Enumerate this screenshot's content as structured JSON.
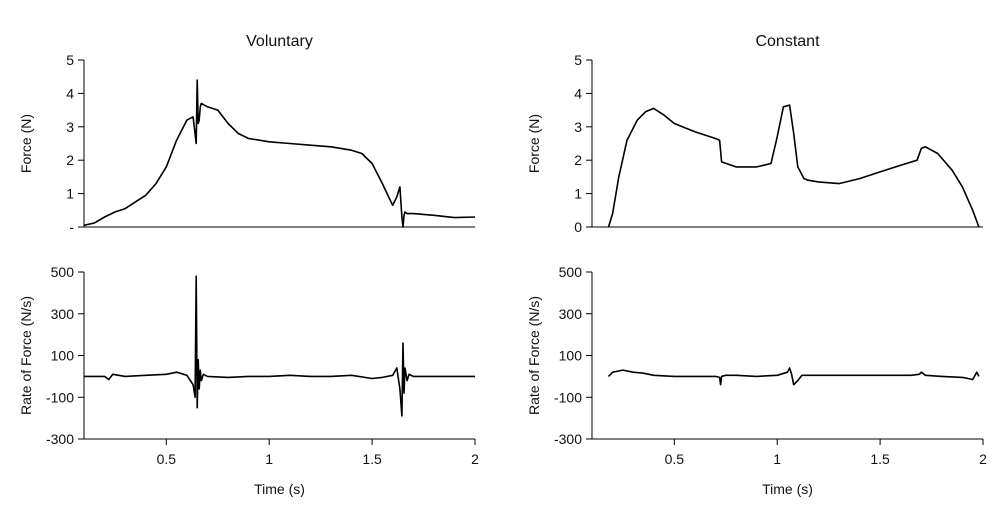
{
  "chart_data": [
    {
      "type": "line",
      "title": "Voluntary",
      "xlabel": "",
      "ylabel": "Force (N)",
      "xlim": [
        0.1,
        2.0
      ],
      "ylim": [
        0,
        5
      ],
      "yticks": [
        {
          "value": 0,
          "label": "-"
        },
        {
          "value": 1,
          "label": "1"
        },
        {
          "value": 2,
          "label": "2"
        },
        {
          "value": 3,
          "label": "3"
        },
        {
          "value": 4,
          "label": "4"
        },
        {
          "value": 5,
          "label": "5"
        }
      ],
      "xticks": [],
      "series": [
        {
          "x": [
            0.1,
            0.15,
            0.2,
            0.25,
            0.3,
            0.35,
            0.4,
            0.45,
            0.5,
            0.55,
            0.6,
            0.63,
            0.645,
            0.65,
            0.655,
            0.66,
            0.665,
            0.67,
            0.7,
            0.75,
            0.8,
            0.85,
            0.9,
            1.0,
            1.1,
            1.2,
            1.3,
            1.4,
            1.45,
            1.5,
            1.55,
            1.58,
            1.6,
            1.62,
            1.635,
            1.645,
            1.65,
            1.655,
            1.66,
            1.67,
            1.7,
            1.8,
            1.9,
            2.0
          ],
          "y": [
            0.05,
            0.12,
            0.3,
            0.45,
            0.55,
            0.75,
            0.95,
            1.3,
            1.8,
            2.6,
            3.2,
            3.3,
            2.5,
            4.4,
            3.1,
            3.2,
            3.6,
            3.7,
            3.6,
            3.5,
            3.1,
            2.8,
            2.65,
            2.55,
            2.5,
            2.45,
            2.4,
            2.3,
            2.2,
            1.9,
            1.3,
            0.9,
            0.65,
            0.9,
            1.2,
            0.3,
            0.0,
            0.35,
            0.45,
            0.4,
            0.4,
            0.35,
            0.28,
            0.3
          ]
        }
      ]
    },
    {
      "type": "line",
      "title": "Constant",
      "xlabel": "",
      "ylabel": "Force (N)",
      "xlim": [
        0.1,
        2.0
      ],
      "ylim": [
        0,
        5
      ],
      "yticks": [
        {
          "value": 0,
          "label": "0"
        },
        {
          "value": 1,
          "label": "1"
        },
        {
          "value": 2,
          "label": "2"
        },
        {
          "value": 3,
          "label": "3"
        },
        {
          "value": 4,
          "label": "4"
        },
        {
          "value": 5,
          "label": "5"
        }
      ],
      "xticks": [],
      "series": [
        {
          "x": [
            0.18,
            0.2,
            0.23,
            0.27,
            0.32,
            0.36,
            0.4,
            0.45,
            0.5,
            0.6,
            0.7,
            0.72,
            0.73,
            0.8,
            0.9,
            0.97,
            1.0,
            1.03,
            1.06,
            1.08,
            1.1,
            1.13,
            1.15,
            1.2,
            1.3,
            1.4,
            1.5,
            1.6,
            1.68,
            1.7,
            1.72,
            1.78,
            1.85,
            1.9,
            1.95,
            1.98
          ],
          "y": [
            0,
            0.4,
            1.5,
            2.6,
            3.2,
            3.45,
            3.55,
            3.35,
            3.1,
            2.85,
            2.65,
            2.6,
            1.95,
            1.8,
            1.8,
            1.9,
            2.7,
            3.6,
            3.65,
            2.8,
            1.8,
            1.45,
            1.4,
            1.35,
            1.3,
            1.45,
            1.65,
            1.85,
            2.0,
            2.35,
            2.4,
            2.2,
            1.7,
            1.2,
            0.5,
            0
          ]
        }
      ]
    },
    {
      "type": "line",
      "title": "",
      "xlabel": "Time (s)",
      "ylabel": "Rate of Force (N/s)",
      "xlim": [
        0.1,
        2.0
      ],
      "ylim": [
        -300,
        500
      ],
      "yticks": [
        {
          "value": -300,
          "label": "-300"
        },
        {
          "value": -100,
          "label": "-100"
        },
        {
          "value": 100,
          "label": "100"
        },
        {
          "value": 300,
          "label": "300"
        },
        {
          "value": 500,
          "label": "500"
        }
      ],
      "xticks": [
        {
          "value": 0.5,
          "label": "0.5"
        },
        {
          "value": 1.0,
          "label": "1"
        },
        {
          "value": 1.5,
          "label": "1.5"
        },
        {
          "value": 2.0,
          "label": "2"
        }
      ],
      "series": [
        {
          "x": [
            0.1,
            0.2,
            0.22,
            0.24,
            0.3,
            0.4,
            0.5,
            0.55,
            0.6,
            0.63,
            0.64,
            0.645,
            0.65,
            0.655,
            0.66,
            0.665,
            0.67,
            0.68,
            0.7,
            0.8,
            0.9,
            1.0,
            1.1,
            1.2,
            1.3,
            1.4,
            1.5,
            1.55,
            1.6,
            1.62,
            1.635,
            1.645,
            1.65,
            1.655,
            1.66,
            1.67,
            1.68,
            1.7,
            1.8,
            1.9,
            2.0
          ],
          "y": [
            0,
            0,
            -15,
            10,
            0,
            5,
            10,
            20,
            5,
            -40,
            -100,
            480,
            -150,
            80,
            -60,
            30,
            -20,
            10,
            0,
            -5,
            0,
            0,
            5,
            0,
            0,
            5,
            -10,
            -5,
            5,
            40,
            -60,
            -190,
            160,
            -80,
            40,
            -20,
            10,
            0,
            0,
            0,
            0
          ]
        }
      ]
    },
    {
      "type": "line",
      "title": "",
      "xlabel": "Time (s)",
      "ylabel": "Rate of Force (N/s)",
      "xlim": [
        0.1,
        2.0
      ],
      "ylim": [
        -300,
        500
      ],
      "yticks": [
        {
          "value": -300,
          "label": "-300"
        },
        {
          "value": -100,
          "label": "-100"
        },
        {
          "value": 100,
          "label": "100"
        },
        {
          "value": 300,
          "label": "300"
        },
        {
          "value": 500,
          "label": "500"
        }
      ],
      "xticks": [
        {
          "value": 0.5,
          "label": "0.5"
        },
        {
          "value": 1.0,
          "label": "1"
        },
        {
          "value": 1.5,
          "label": "1.5"
        },
        {
          "value": 2.0,
          "label": "2"
        }
      ],
      "series": [
        {
          "x": [
            0.18,
            0.2,
            0.25,
            0.3,
            0.35,
            0.4,
            0.5,
            0.6,
            0.7,
            0.72,
            0.725,
            0.73,
            0.75,
            0.8,
            0.9,
            1.0,
            1.05,
            1.06,
            1.07,
            1.08,
            1.1,
            1.12,
            1.15,
            1.2,
            1.3,
            1.4,
            1.5,
            1.6,
            1.65,
            1.69,
            1.7,
            1.72,
            1.8,
            1.9,
            1.95,
            1.97,
            1.98
          ],
          "y": [
            0,
            20,
            30,
            20,
            15,
            5,
            0,
            0,
            0,
            -5,
            -40,
            0,
            5,
            5,
            0,
            5,
            20,
            40,
            10,
            -40,
            -20,
            5,
            5,
            5,
            5,
            5,
            5,
            5,
            5,
            10,
            20,
            5,
            0,
            -5,
            -15,
            20,
            0
          ]
        }
      ]
    }
  ]
}
